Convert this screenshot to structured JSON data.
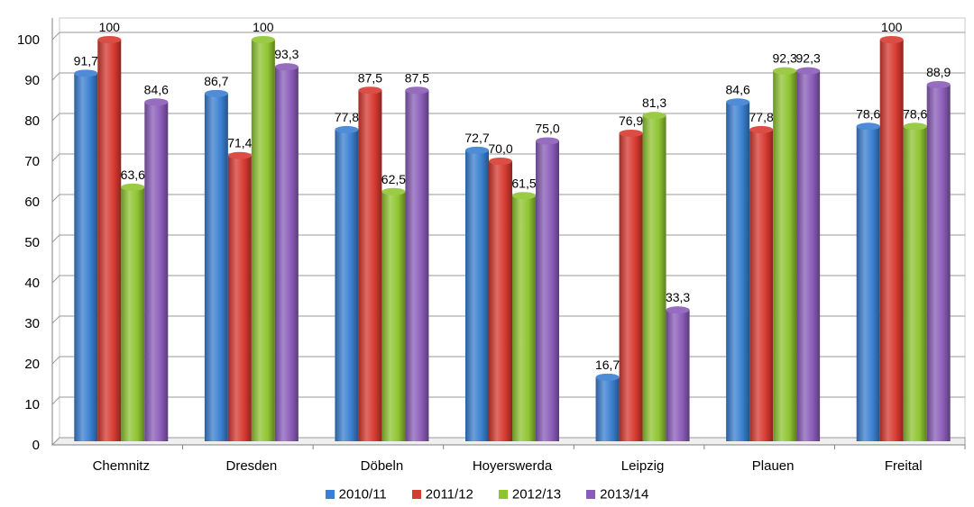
{
  "chart_data": {
    "type": "bar",
    "categories": [
      "Chemnitz",
      "Dresden",
      "Döbeln",
      "Hoyerswerda",
      "Leipzig",
      "Plauen",
      "Freital"
    ],
    "series": [
      {
        "name": "2010/11",
        "color": "#3a7fd0",
        "values": [
          91.7,
          86.7,
          77.8,
          72.7,
          16.7,
          84.6,
          78.6
        ],
        "labels": [
          "91,7",
          "86,7",
          "77,8",
          "72,7",
          "16,7",
          "84,6",
          "78,6"
        ]
      },
      {
        "name": "2011/12",
        "color": "#d63a30",
        "values": [
          100,
          71.4,
          87.5,
          70.0,
          76.9,
          77.8,
          100
        ],
        "labels": [
          "100",
          "71,4",
          "87,5",
          "70,0",
          "76,9",
          "77,8",
          "100"
        ]
      },
      {
        "name": "2012/13",
        "color": "#8fc431",
        "values": [
          63.6,
          100,
          62.5,
          61.5,
          81.3,
          92.3,
          78.6
        ],
        "labels": [
          "63,6",
          "100",
          "62,5",
          "61,5",
          "81,3",
          "92,3",
          "78,6"
        ]
      },
      {
        "name": "2013/14",
        "color": "#8a5cb8",
        "values": [
          84.6,
          93.3,
          87.5,
          75.0,
          33.3,
          92.3,
          88.9
        ],
        "labels": [
          "84,6",
          "93,3",
          "87,5",
          "75,0",
          "33,3",
          "92,3",
          "88,9"
        ]
      }
    ],
    "ylim": [
      0,
      100
    ],
    "yticks": [
      0,
      10,
      20,
      30,
      40,
      50,
      60,
      70,
      80,
      90,
      100
    ],
    "grid": true,
    "legend_position": "bottom",
    "xlabel": "",
    "ylabel": ""
  }
}
